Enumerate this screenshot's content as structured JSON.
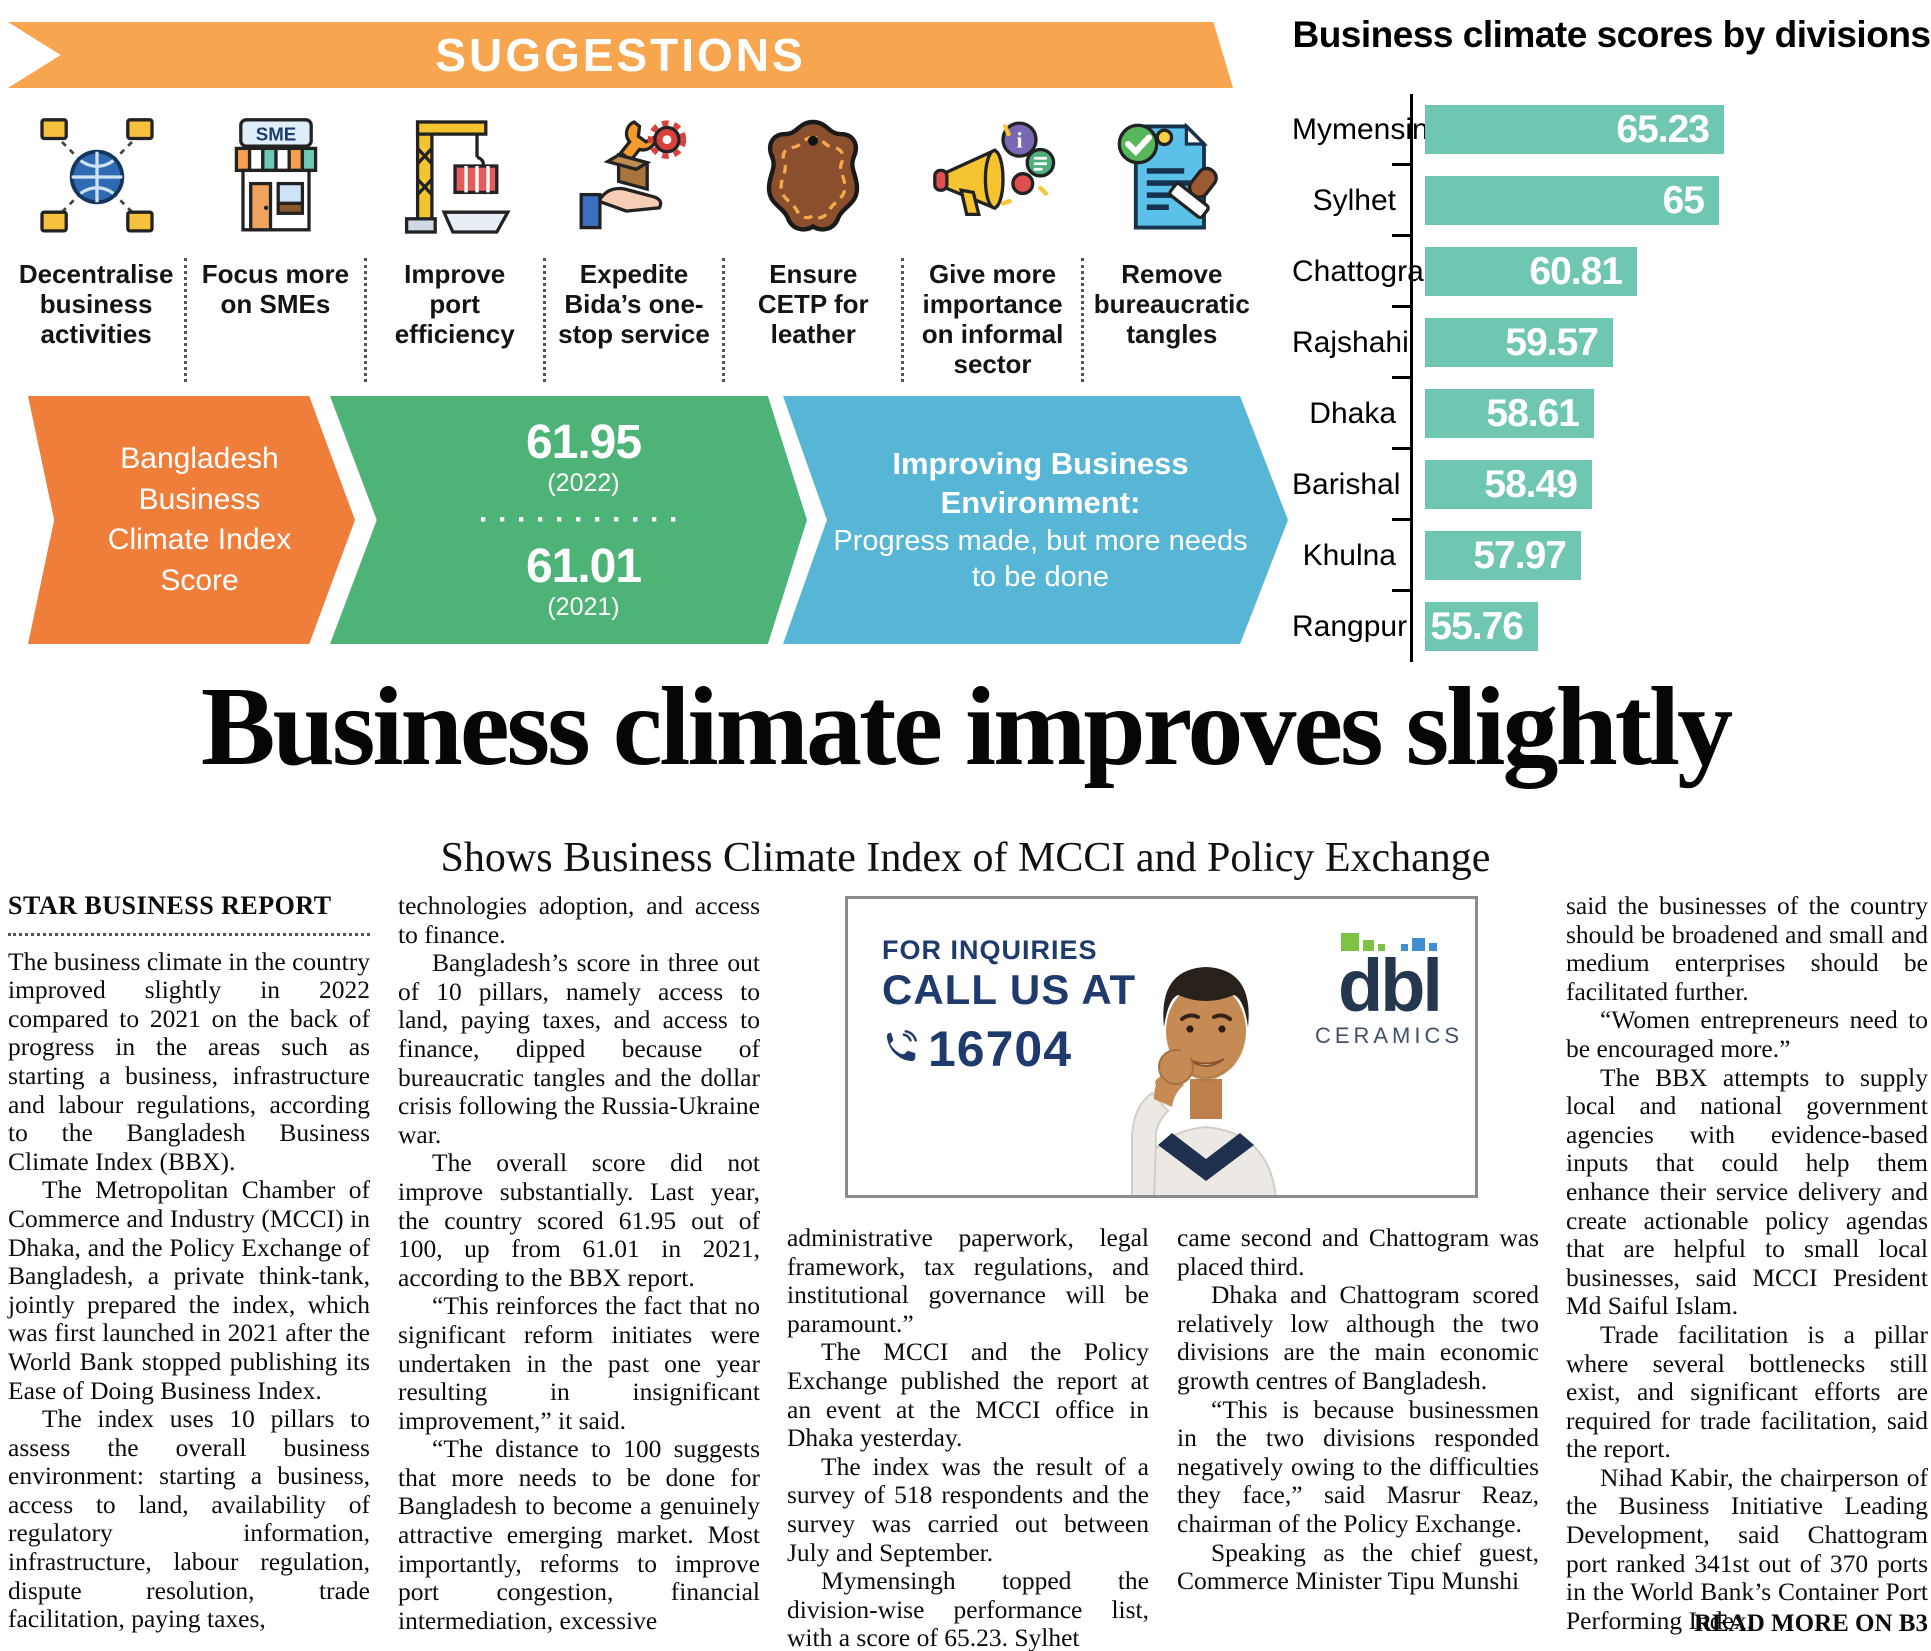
{
  "colors": {
    "banner_orange": "#f7a54e",
    "arrow_orange": "#ee7e3a",
    "arrow_green": "#4eb377",
    "arrow_blue": "#57b5d5",
    "bar_teal": "#70c7b1",
    "ad_navy": "#1f3a6d",
    "logo_navy": "#25364f",
    "logo_green": "#7dc242",
    "logo_blue": "#3f8fd2"
  },
  "infographic": {
    "banner_label": "SUGGESTIONS",
    "suggestions": [
      {
        "icon": "decentralise-network-icon",
        "label": "Decentralise business activities"
      },
      {
        "icon": "sme-store-icon",
        "icon_text": "SME",
        "label": "Focus more on SMEs"
      },
      {
        "icon": "port-crane-icon",
        "label": "Improve port efficiency"
      },
      {
        "icon": "one-stop-service-icon",
        "label": "Expedite Bida’s one-stop service"
      },
      {
        "icon": "leather-icon",
        "label": "Ensure CETP for leather"
      },
      {
        "icon": "megaphone-icon",
        "label": "Give more importance on informal sector"
      },
      {
        "icon": "stamped-document-icon",
        "label": "Remove bureaucratic tangles"
      }
    ],
    "arrow_orange": {
      "label": "Bangladesh Business Climate Index Score"
    },
    "arrow_green": {
      "score_new": "61.95",
      "year_new": "(2022)",
      "dots": "···········",
      "score_old": "61.01",
      "year_old": "(2021)"
    },
    "arrow_blue": {
      "title": "Improving Business Environment:",
      "subtitle": "Progress made, but more needs to be done"
    }
  },
  "chart_data": {
    "type": "bar",
    "orientation": "horizontal",
    "title": "Business climate scores by divisions",
    "categories": [
      "Mymensingh",
      "Sylhet",
      "Chattogram",
      "Rajshahi",
      "Dhaka",
      "Barishal",
      "Khulna",
      "Rangpur"
    ],
    "values": [
      65.23,
      65,
      60.81,
      59.57,
      58.61,
      58.49,
      57.97,
      55.76
    ],
    "value_labels": [
      "65.23",
      "65",
      "60.81",
      "59.57",
      "58.61",
      "58.49",
      "57.97",
      "55.76"
    ],
    "xlim": [
      50,
      65.23
    ],
    "bar_color": "#70c7b1",
    "value_label_position": "inside-right",
    "grid": false,
    "legend": false
  },
  "article": {
    "headline": "Business climate improves slightly",
    "subheadline": "Shows Business Climate Index of MCCI and Policy Exchange",
    "byline": "STAR BUSINESS REPORT",
    "read_more": "READ MORE ON B3"
  },
  "columns": [
    {
      "paragraphs": [
        "The business climate in the country improved slightly in 2022 compared to 2021 on the back of progress in the areas such as starting a business, infrastructure and labour regulations, according to the Bangladesh Business Climate Index (BBX).",
        "The Metropolitan Chamber of Commerce and Industry (MCCI) in Dhaka, and the Policy Exchange of Bangladesh, a private think-tank, jointly prepared the index, which was first launched in 2021 after the World Bank stopped publishing its Ease of Doing Business Index.",
        "The index uses 10 pillars to assess the overall business environment: starting a business, access to land, availability of regulatory information, infrastructure, labour regulation, dispute resolution, trade facilitation, paying taxes,"
      ]
    },
    {
      "paragraphs": [
        "technologies adoption, and access to finance.",
        "Bangladesh’s score in three out of 10 pillars, namely access to land, paying taxes, and access to finance, dipped because of bureaucratic tangles and the dollar crisis following the Russia-Ukraine war.",
        "The overall score did not improve substantially. Last year, the country scored 61.95 out of 100, up from 61.01 in 2021, according to the BBX report.",
        "“This reinforces the fact that no significant reform initiates were undertaken in the past one year resulting in insignificant improvement,” it said.",
        "“The distance to 100 suggests that more needs to be done for Bangladesh to become a genuinely attractive emerging market. Most importantly, reforms to improve port congestion, financial intermediation, excessive"
      ]
    },
    {
      "paragraphs": [
        "administrative paperwork, legal framework, tax regulations, and institutional governance will be paramount.”",
        "The MCCI and the Policy Exchange published the report at an event at the MCCI office in Dhaka yesterday.",
        "The index was the result of a survey of 518 respondents and the survey was carried out between July and September.",
        "Mymensingh topped the division-wise performance list, with a score of 65.23. Sylhet"
      ]
    },
    {
      "paragraphs": [
        "came second and Chattogram was placed third.",
        "Dhaka and Chattogram scored relatively low although the two divisions are the main economic growth centres of Bangladesh.",
        "“This is because businessmen in the two divisions responded negatively owing to the difficulties they face,” said Masrur Reaz, chairman of the Policy Exchange.",
        "Speaking as the chief guest, Commerce Minister Tipu Munshi"
      ]
    },
    {
      "paragraphs": [
        "said the businesses of the country should be broadened and small and medium enterprises should be facilitated further.",
        "“Women entrepreneurs need to be encouraged more.”",
        "The BBX attempts to supply local and national government agencies with evidence-based inputs that could help them enhance their service delivery and create actionable policy agendas that are helpful to small local businesses, said MCCI President Md Saiful Islam.",
        "Trade facilitation is a pillar where several bottlenecks still exist, and significant efforts are required for trade facilitation, said the report.",
        "Nihad Kabir, the chairperson of the Business Initiative Leading Development, said Chattogram port ranked 341st out of 370 ports in the World Bank’s Container Port Performing Index."
      ]
    }
  ],
  "ad": {
    "line1": "FOR INQUIRIES",
    "line2": "CALL US AT",
    "phone": "16704",
    "brand": "dbl",
    "brand_sub": "CERAMICS"
  }
}
